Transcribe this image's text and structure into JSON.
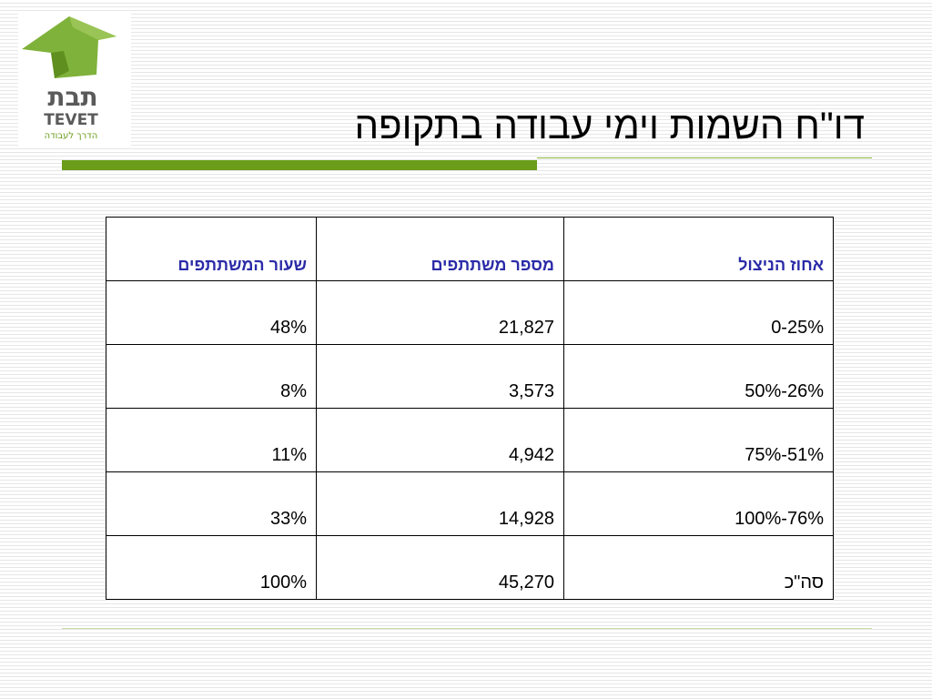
{
  "logo": {
    "hebrew_name": "תבת",
    "latin_name": "TEVET",
    "tagline": "הדרך לעבודה",
    "colors": {
      "roof": "#7fb23a",
      "text_dark": "#5a5a5a",
      "text_green": "#6b9c1a"
    }
  },
  "title": "דו\"ח השמות וימי עבודה בתקופה",
  "accent_color": "#6b9c1a",
  "header_color": "#2b2ba8",
  "table": {
    "headers": [
      "אחוז הניצול",
      "מספר משתתפים",
      "שעור המשתתפים"
    ],
    "rows": [
      [
        "0-25%",
        "21,827",
        "48%"
      ],
      [
        "50%-26%",
        "3,573",
        "8%"
      ],
      [
        "75%-51%",
        "4,942",
        "11%"
      ],
      [
        "100%-76%",
        "14,928",
        "33%"
      ],
      [
        "סה\"כ",
        "45,270",
        "100%"
      ]
    ]
  }
}
